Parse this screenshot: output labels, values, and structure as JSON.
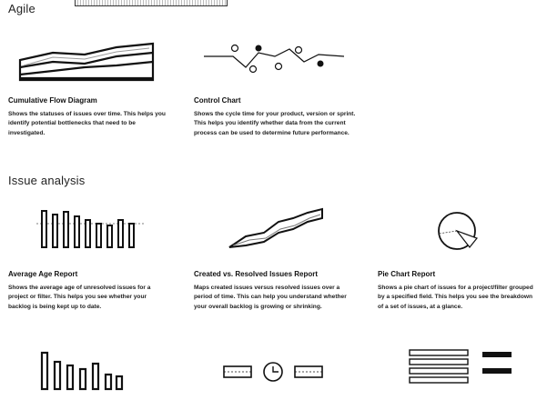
{
  "sections": {
    "agile": {
      "title": "Agile",
      "reports": [
        {
          "id": "cumulative-flow",
          "title": "Cumulative Flow Diagram",
          "description": "Shows the statuses of issues over time. This helps you identify potential bottlenecks that need to be investigated.",
          "icon": "stacked-area-chart-icon"
        },
        {
          "id": "control-chart",
          "title": "Control Chart",
          "description": "Shows the cycle time for your product, version or sprint. This helps you identify whether data from the current process can be used to determine future performance.",
          "icon": "control-chart-icon"
        }
      ]
    },
    "issue_analysis": {
      "title": "Issue analysis",
      "reports": [
        {
          "id": "average-age",
          "title": "Average Age Report",
          "description": "Shows the average age of unresolved issues for a project or filter. This helps you see whether your backlog is being kept up to date.",
          "icon": "bar-chart-icon"
        },
        {
          "id": "created-vs-resolved",
          "title": "Created vs. Resolved Issues Report",
          "description": "Maps created issues versus resolved issues over a period of time. This can help you understand whether your overall backlog is growing or shrinking.",
          "icon": "area-comparison-chart-icon"
        },
        {
          "id": "pie-chart",
          "title": "Pie Chart Report",
          "description": "Shows a pie chart of issues for a project/filter grouped by a specified field. This helps you see the breakdown of a set of issues, at a glance.",
          "icon": "pie-chart-icon"
        }
      ],
      "bottom_icons": [
        "bar-chart-icon",
        "time-tracking-icon",
        "list-report-icon"
      ]
    }
  },
  "colors": {
    "ink": "#111111",
    "background": "#ffffff"
  }
}
